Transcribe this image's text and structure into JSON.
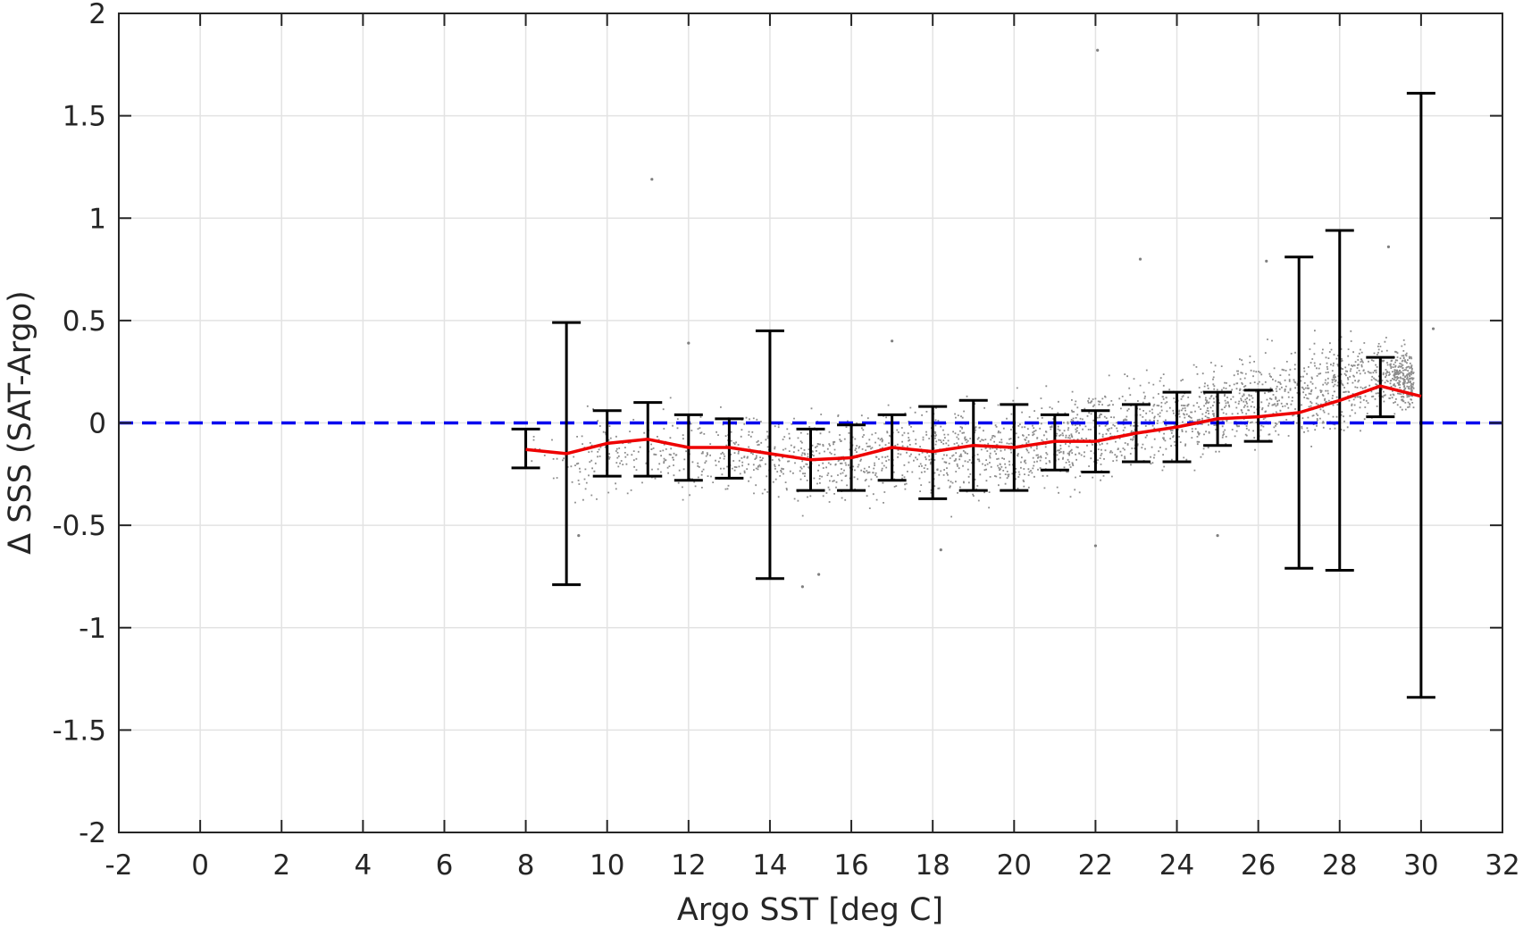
{
  "chart_data": {
    "type": "scatter",
    "xlabel": "Argo SST [deg C]",
    "ylabel": "Δ SSS (SAT-Argo)",
    "xlim": [
      -2,
      32
    ],
    "ylim": [
      -2,
      2
    ],
    "xticks": [
      -2,
      0,
      2,
      4,
      6,
      8,
      10,
      12,
      14,
      16,
      18,
      20,
      22,
      24,
      26,
      28,
      30,
      32
    ],
    "yticks": [
      2,
      1.5,
      1,
      0.5,
      0,
      -0.5,
      -1,
      -1.5,
      -2
    ],
    "ytick_labels": [
      "2",
      "1.5",
      "1",
      "0.5",
      "0",
      "-0.5",
      "-1",
      "-1.5",
      "-2"
    ],
    "grid": true,
    "zero_reference_line": {
      "y": 0,
      "style": "dashed",
      "color": "#0000ee"
    },
    "scatter": {
      "color": "#808080",
      "x_range": [
        8,
        30.5
      ],
      "bulk_envelope": [
        {
          "x": 8.2,
          "lo": -0.28,
          "hi": 0.05
        },
        {
          "x": 9,
          "lo": -0.45,
          "hi": 0.12
        },
        {
          "x": 10,
          "lo": -0.42,
          "hi": 0.14
        },
        {
          "x": 11,
          "lo": -0.42,
          "hi": 0.15
        },
        {
          "x": 12,
          "lo": -0.42,
          "hi": 0.12
        },
        {
          "x": 13,
          "lo": -0.42,
          "hi": 0.12
        },
        {
          "x": 14,
          "lo": -0.45,
          "hi": 0.12
        },
        {
          "x": 15,
          "lo": -0.48,
          "hi": 0.12
        },
        {
          "x": 16,
          "lo": -0.47,
          "hi": 0.13
        },
        {
          "x": 17,
          "lo": -0.45,
          "hi": 0.15
        },
        {
          "x": 18,
          "lo": -0.47,
          "hi": 0.17
        },
        {
          "x": 19,
          "lo": -0.45,
          "hi": 0.18
        },
        {
          "x": 20,
          "lo": -0.45,
          "hi": 0.2
        },
        {
          "x": 21,
          "lo": -0.38,
          "hi": 0.22
        },
        {
          "x": 22,
          "lo": -0.36,
          "hi": 0.25
        },
        {
          "x": 23,
          "lo": -0.3,
          "hi": 0.3
        },
        {
          "x": 24,
          "lo": -0.28,
          "hi": 0.34
        },
        {
          "x": 25,
          "lo": -0.22,
          "hi": 0.38
        },
        {
          "x": 26,
          "lo": -0.2,
          "hi": 0.42
        },
        {
          "x": 27,
          "lo": -0.17,
          "hi": 0.45
        },
        {
          "x": 28,
          "lo": -0.12,
          "hi": 0.5
        },
        {
          "x": 29,
          "lo": -0.02,
          "hi": 0.52
        },
        {
          "x": 29.8,
          "lo": 0.0,
          "hi": 0.4
        }
      ],
      "outliers": [
        {
          "x": 22.05,
          "y": 1.82
        },
        {
          "x": 11.1,
          "y": 1.19
        },
        {
          "x": 23.1,
          "y": 0.8
        },
        {
          "x": 29.2,
          "y": 0.86
        },
        {
          "x": 26.2,
          "y": 0.79
        },
        {
          "x": 14.8,
          "y": -0.8
        },
        {
          "x": 15.2,
          "y": -0.74
        },
        {
          "x": 9.3,
          "y": -0.55
        },
        {
          "x": 25.0,
          "y": -0.55
        },
        {
          "x": 30.3,
          "y": 0.46
        },
        {
          "x": 18.2,
          "y": -0.62
        },
        {
          "x": 22.0,
          "y": -0.6
        },
        {
          "x": 12.0,
          "y": 0.39
        },
        {
          "x": 17.0,
          "y": 0.4
        }
      ]
    },
    "mean_line": {
      "color": "#ee0000",
      "x": [
        8,
        9,
        10,
        11,
        12,
        13,
        14,
        15,
        16,
        17,
        18,
        19,
        20,
        21,
        22,
        23,
        24,
        25,
        26,
        27,
        28,
        29,
        30
      ],
      "y": [
        -0.13,
        -0.15,
        -0.1,
        -0.08,
        -0.12,
        -0.12,
        -0.15,
        -0.18,
        -0.17,
        -0.12,
        -0.14,
        -0.11,
        -0.12,
        -0.09,
        -0.09,
        -0.05,
        -0.02,
        0.02,
        0.03,
        0.05,
        0.11,
        0.18,
        0.13
      ]
    },
    "error_bars": [
      {
        "x": 8,
        "lo": -0.22,
        "hi": -0.03
      },
      {
        "x": 9,
        "lo": -0.79,
        "hi": 0.49
      },
      {
        "x": 10,
        "lo": -0.26,
        "hi": 0.06
      },
      {
        "x": 11,
        "lo": -0.26,
        "hi": 0.1
      },
      {
        "x": 12,
        "lo": -0.28,
        "hi": 0.04
      },
      {
        "x": 13,
        "lo": -0.27,
        "hi": 0.02
      },
      {
        "x": 14,
        "lo": -0.76,
        "hi": 0.45
      },
      {
        "x": 15,
        "lo": -0.33,
        "hi": -0.03
      },
      {
        "x": 16,
        "lo": -0.33,
        "hi": -0.01
      },
      {
        "x": 17,
        "lo": -0.28,
        "hi": 0.04
      },
      {
        "x": 18,
        "lo": -0.37,
        "hi": 0.08
      },
      {
        "x": 19,
        "lo": -0.33,
        "hi": 0.11
      },
      {
        "x": 20,
        "lo": -0.33,
        "hi": 0.09
      },
      {
        "x": 21,
        "lo": -0.23,
        "hi": 0.04
      },
      {
        "x": 22,
        "lo": -0.24,
        "hi": 0.06
      },
      {
        "x": 23,
        "lo": -0.19,
        "hi": 0.09
      },
      {
        "x": 24,
        "lo": -0.19,
        "hi": 0.15
      },
      {
        "x": 25,
        "lo": -0.11,
        "hi": 0.15
      },
      {
        "x": 26,
        "lo": -0.09,
        "hi": 0.16
      },
      {
        "x": 27,
        "lo": -0.71,
        "hi": 0.81
      },
      {
        "x": 28,
        "lo": -0.72,
        "hi": 0.94
      },
      {
        "x": 29,
        "lo": 0.03,
        "hi": 0.32
      },
      {
        "x": 30,
        "lo": -1.34,
        "hi": 1.61
      }
    ]
  }
}
